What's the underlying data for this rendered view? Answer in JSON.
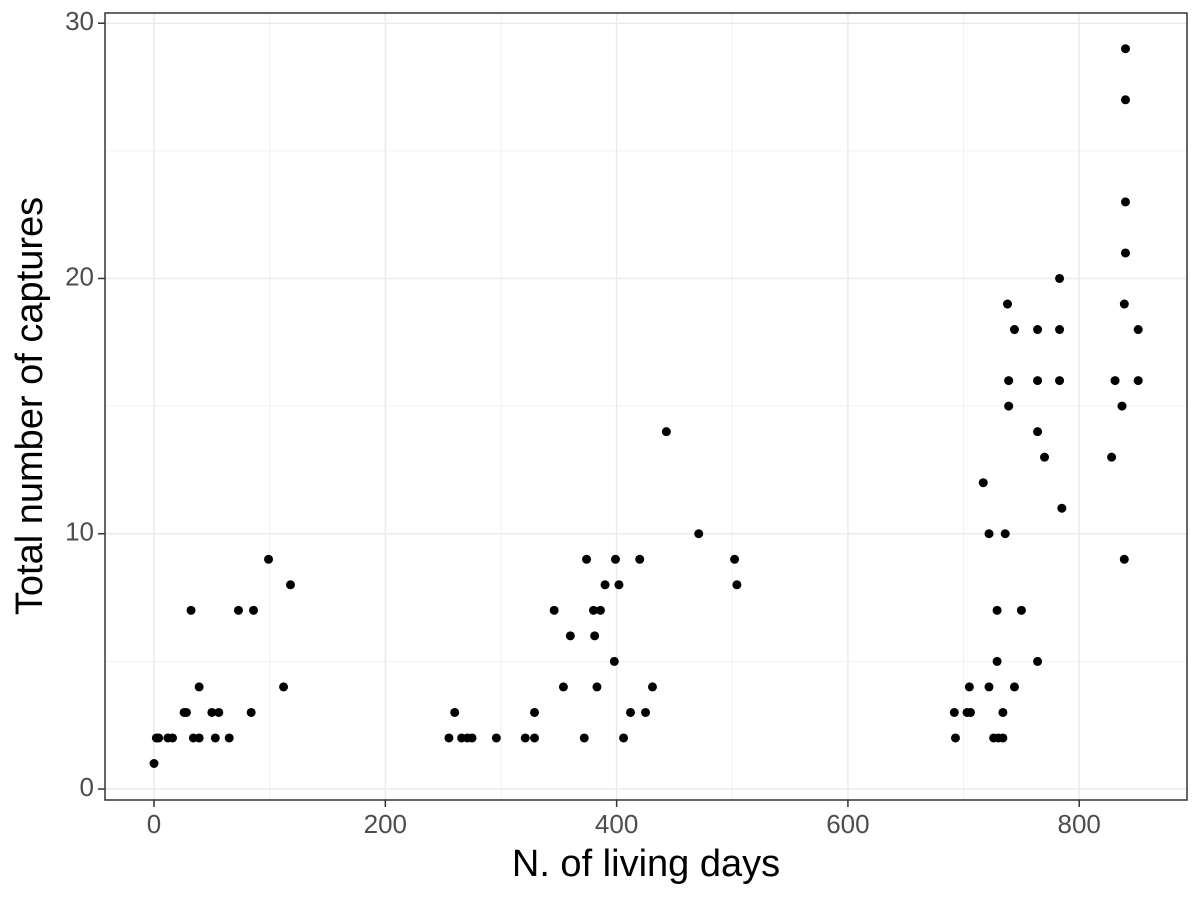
{
  "chart_data": {
    "type": "scatter",
    "x_label": "N. of living days",
    "y_label": "Total number of captures",
    "color": "#000000",
    "grid": true,
    "xlim": [
      -42.4,
      893.2
    ],
    "ylim": [
      -0.43,
      30.4
    ],
    "xticks": [
      0,
      200,
      400,
      600,
      800
    ],
    "yticks": [
      0,
      10,
      20,
      30
    ],
    "x": [
      0,
      2,
      4,
      12,
      16,
      26,
      28,
      32,
      34,
      39,
      39,
      50,
      56,
      53,
      65,
      73,
      84,
      86,
      99,
      112,
      118,
      255,
      260,
      266,
      271,
      275,
      296,
      321,
      329,
      329,
      346,
      354,
      360,
      372,
      374,
      380,
      381,
      383,
      386,
      390,
      398,
      399,
      402,
      406,
      412,
      420,
      425,
      431,
      443,
      471,
      502,
      504,
      692,
      693,
      703,
      705,
      706,
      717,
      722,
      722,
      726,
      729,
      729,
      730,
      734,
      734,
      736,
      738,
      739,
      739,
      744,
      744,
      750,
      764,
      764,
      764,
      764,
      770,
      783,
      783,
      783,
      785,
      828,
      831,
      837,
      839,
      840,
      840,
      840,
      840,
      839,
      851,
      851
    ],
    "values": [
      1,
      2,
      2,
      2,
      2,
      3,
      3,
      7,
      2,
      2,
      4,
      3,
      3,
      2,
      2,
      7,
      3,
      7,
      9,
      4,
      8,
      2,
      3,
      2,
      2,
      2,
      2,
      2,
      3,
      2,
      7,
      4,
      6,
      2,
      9,
      7,
      6,
      4,
      7,
      8,
      5,
      9,
      8,
      2,
      3,
      9,
      3,
      4,
      14,
      10,
      9,
      8,
      3,
      2,
      3,
      4,
      3,
      12,
      10,
      4,
      2,
      7,
      5,
      2,
      2,
      3,
      10,
      19,
      16,
      15,
      18,
      4,
      7,
      18,
      16,
      14,
      5,
      13,
      20,
      18,
      16,
      11,
      13,
      16,
      15,
      19,
      29,
      27,
      23,
      21,
      9,
      18,
      16
    ]
  }
}
